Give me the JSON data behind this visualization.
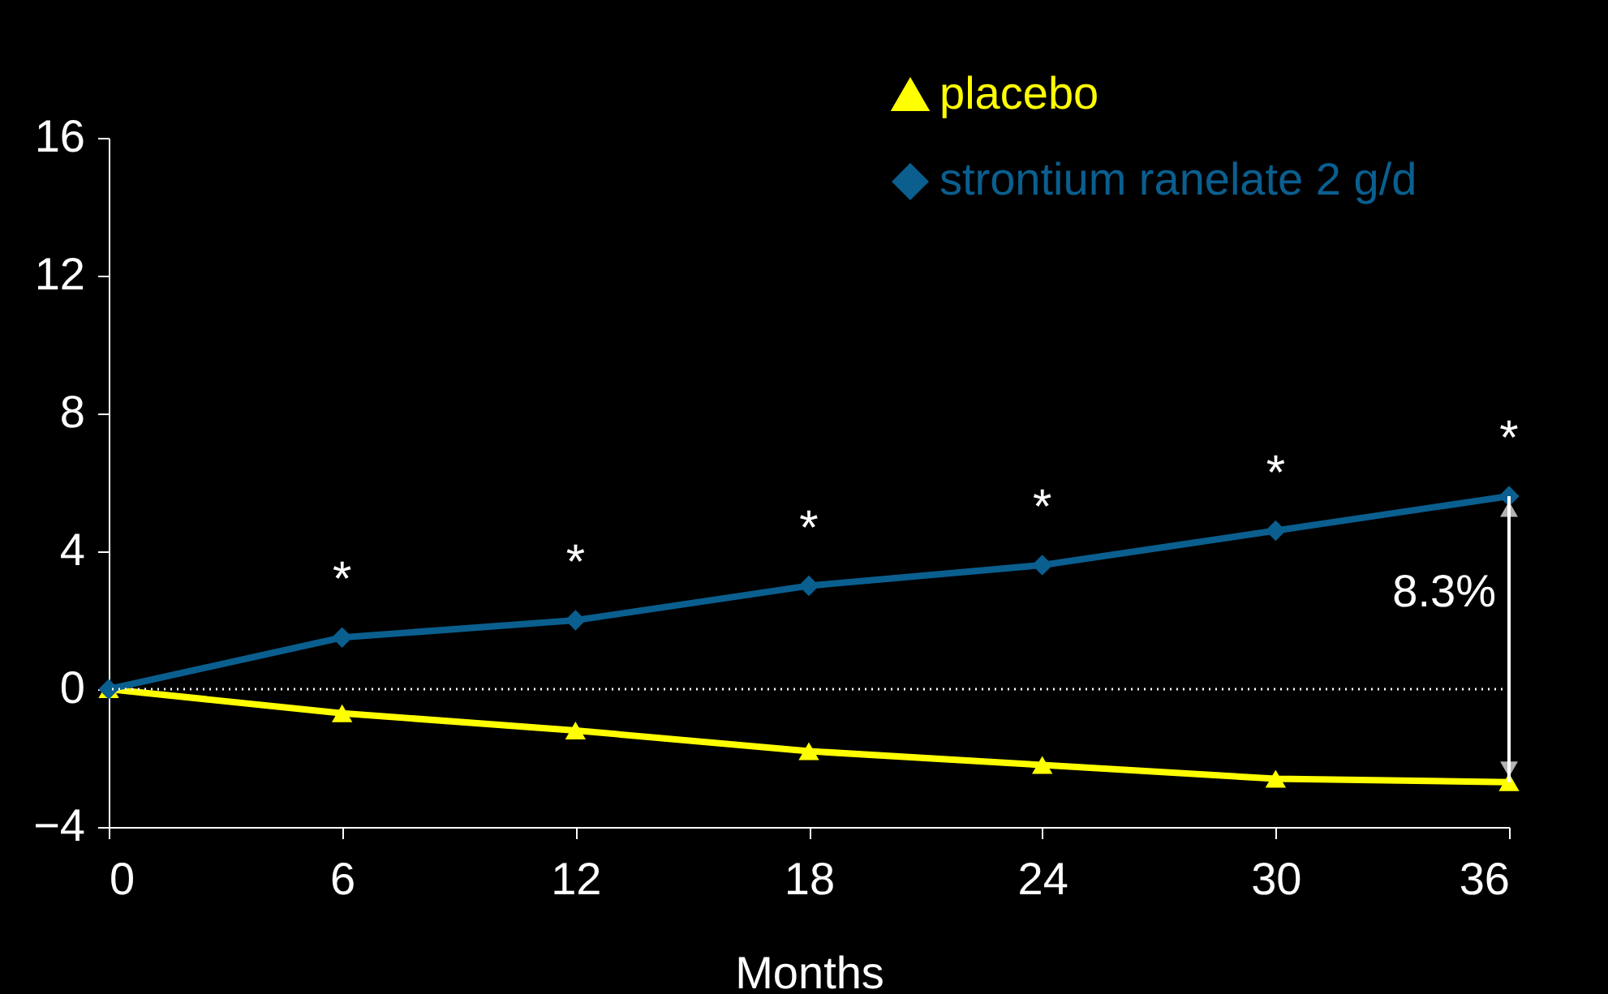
{
  "chart_data": {
    "type": "line",
    "xlabel": "Months",
    "x": [
      0,
      6,
      12,
      18,
      24,
      30,
      36
    ],
    "series": [
      {
        "name": "placebo",
        "color": "#ffff00",
        "marker": "triangle",
        "values": [
          0,
          -0.7,
          -1.2,
          -1.8,
          -2.2,
          -2.6,
          -2.7
        ]
      },
      {
        "name": "strontium ranelate 2 g/d",
        "color": "#0a5f8f",
        "marker": "diamond",
        "values": [
          0,
          1.5,
          2.0,
          3.0,
          3.6,
          4.6,
          5.6
        ]
      }
    ],
    "xlim": [
      0,
      36
    ],
    "xticks": [
      0,
      6,
      12,
      18,
      24,
      30,
      36
    ],
    "ylim": [
      -4,
      16
    ],
    "yticks": [
      -4,
      0,
      4,
      8,
      12,
      16
    ],
    "grid": false,
    "legend": "top right",
    "line_style": "solid",
    "ref_lines": [
      {
        "axis": "y",
        "value": 0,
        "color": "#ffffff",
        "line_style": "dotted"
      }
    ],
    "annotations": [
      "*",
      "*",
      "*",
      "*",
      "*",
      "*",
      "8.3%"
    ]
  }
}
